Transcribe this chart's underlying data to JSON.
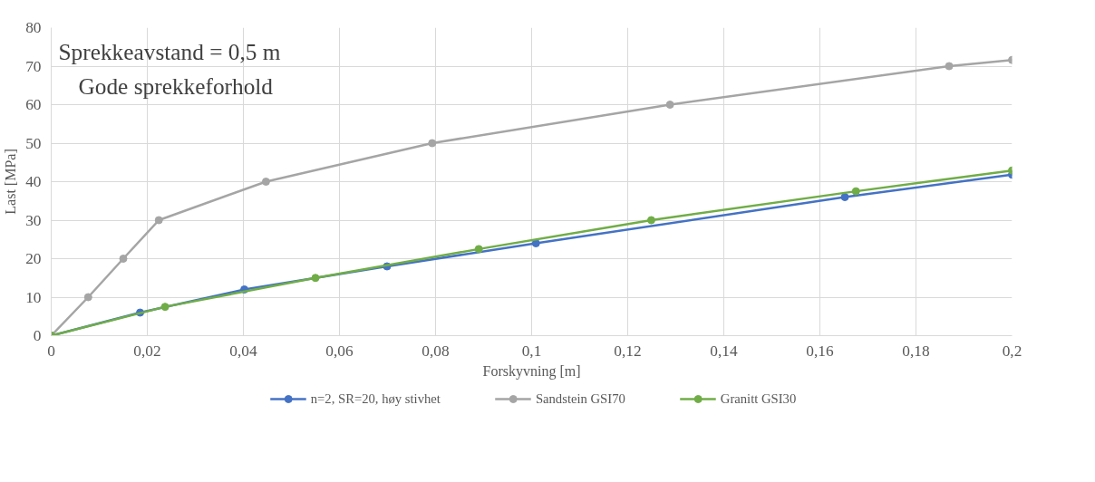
{
  "chart_data": {
    "type": "line",
    "xlabel": "Forskyvning [m]",
    "ylabel": "Last [MPa]",
    "annotations": [
      "Sprekkeavstand = 0,5 m",
      "Gode sprekkeforhold"
    ],
    "xlim": [
      0,
      0.2
    ],
    "ylim": [
      0,
      80
    ],
    "xticks": [
      0,
      {
        "value": 0.02,
        "label": "0,02"
      },
      {
        "value": 0.04,
        "label": "0,04"
      },
      {
        "value": 0.06,
        "label": "0,06"
      },
      {
        "value": 0.08,
        "label": "0,08"
      },
      {
        "value": 0.1,
        "label": "0,1"
      },
      {
        "value": 0.12,
        "label": "0,12"
      },
      {
        "value": 0.14,
        "label": "0,14"
      },
      {
        "value": 0.16,
        "label": "0,16"
      },
      {
        "value": 0.18,
        "label": "0,18"
      },
      {
        "value": 0.2,
        "label": "0,2"
      }
    ],
    "yticks": [
      0,
      10,
      20,
      30,
      40,
      50,
      60,
      70,
      80
    ],
    "grid": true,
    "legend": "bottom",
    "marker": "circle",
    "line_style": "solid",
    "series": [
      {
        "name": "n=2, SR=20, høy stivhet",
        "color": "#4472c4",
        "x": [
          0,
          0.0185,
          0.0402,
          0.0699,
          0.1009,
          0.1652,
          0.2
        ],
        "values": [
          0,
          6,
          12,
          18,
          24,
          36,
          41.8
        ]
      },
      {
        "name": "Sandstein GSI70",
        "color": "#a5a5a5",
        "x": [
          0,
          0.0077,
          0.015,
          0.0224,
          0.0447,
          0.0793,
          0.1288,
          0.1869,
          0.2
        ],
        "values": [
          0,
          10,
          20,
          30,
          40,
          50,
          60,
          70,
          71.6
        ]
      },
      {
        "name": "Granitt GSI30",
        "color": "#70ad47",
        "x": [
          0,
          0.0237,
          0.055,
          0.089,
          0.1249,
          0.1675,
          0.2
        ],
        "values": [
          0,
          7.5,
          15,
          22.5,
          30,
          37.5,
          42.9
        ]
      }
    ]
  }
}
